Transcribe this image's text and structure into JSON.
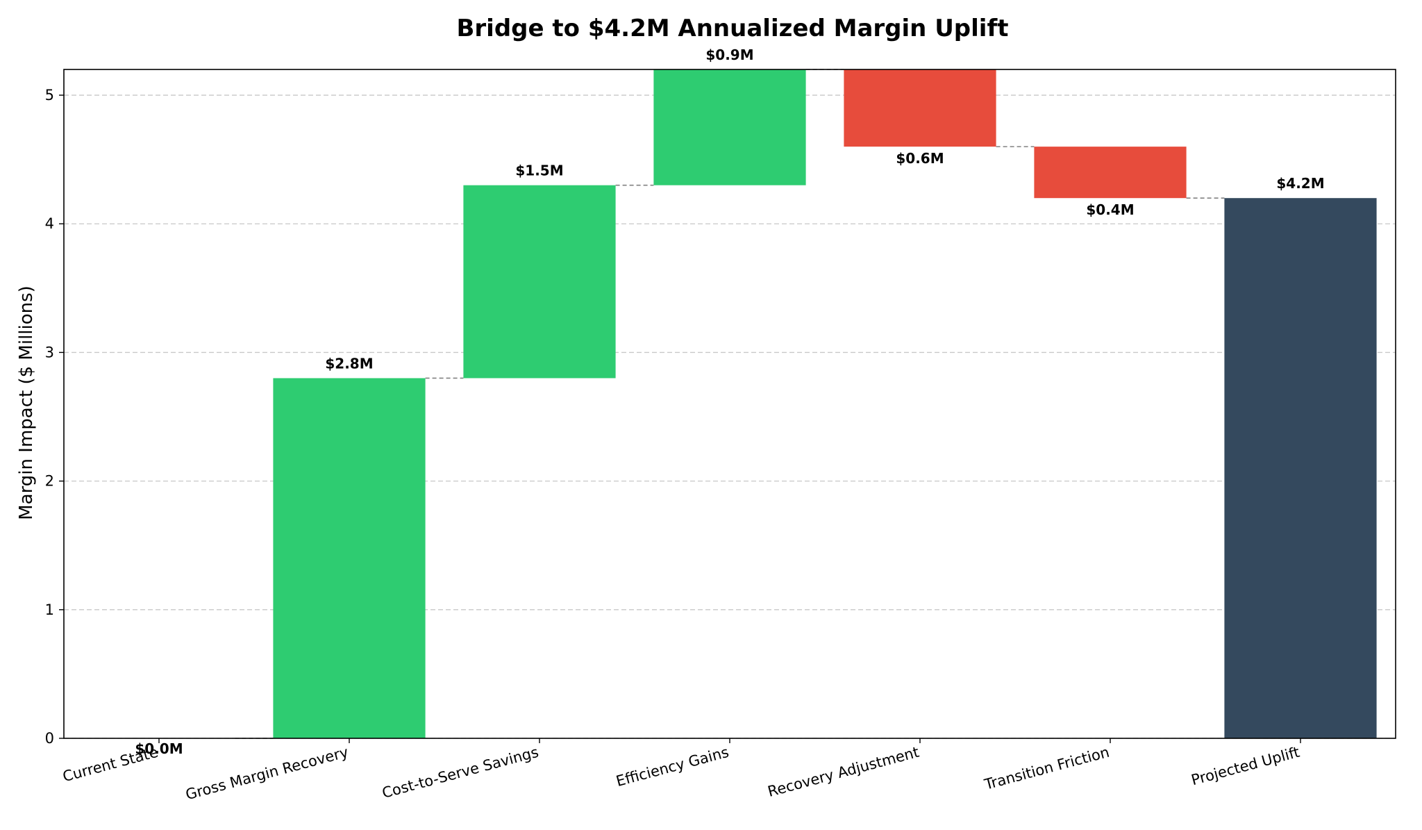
{
  "chart_data": {
    "type": "bar",
    "subtype": "waterfall",
    "title": "Bridge to $4.2M Annualized Margin Uplift",
    "xlabel": "",
    "ylabel": "Margin Impact ($ Millions)",
    "ylim": [
      0,
      5.2
    ],
    "yticks": [
      0,
      1,
      2,
      3,
      4,
      5
    ],
    "grid": "y-dashed",
    "categories": [
      "Current State",
      "Gross Margin Recovery",
      "Cost-to-Serve Savings",
      "Efficiency Gains",
      "Recovery Adjustment",
      "Transition Friction",
      "Projected Uplift"
    ],
    "deltas": [
      0.0,
      2.8,
      1.5,
      0.9,
      -0.6,
      -0.4,
      4.2
    ],
    "kinds": [
      "total",
      "increase",
      "increase",
      "increase",
      "decrease",
      "decrease",
      "total"
    ],
    "data_labels": [
      "$0.0M",
      "$2.8M",
      "$1.5M",
      "$0.9M",
      "$0.6M",
      "$0.4M",
      "$4.2M"
    ],
    "colors": {
      "increase": "#2ecc71",
      "decrease": "#e74c3c",
      "total": "#34495e",
      "connector": "#808080",
      "grid": "#c8c8c8"
    }
  }
}
